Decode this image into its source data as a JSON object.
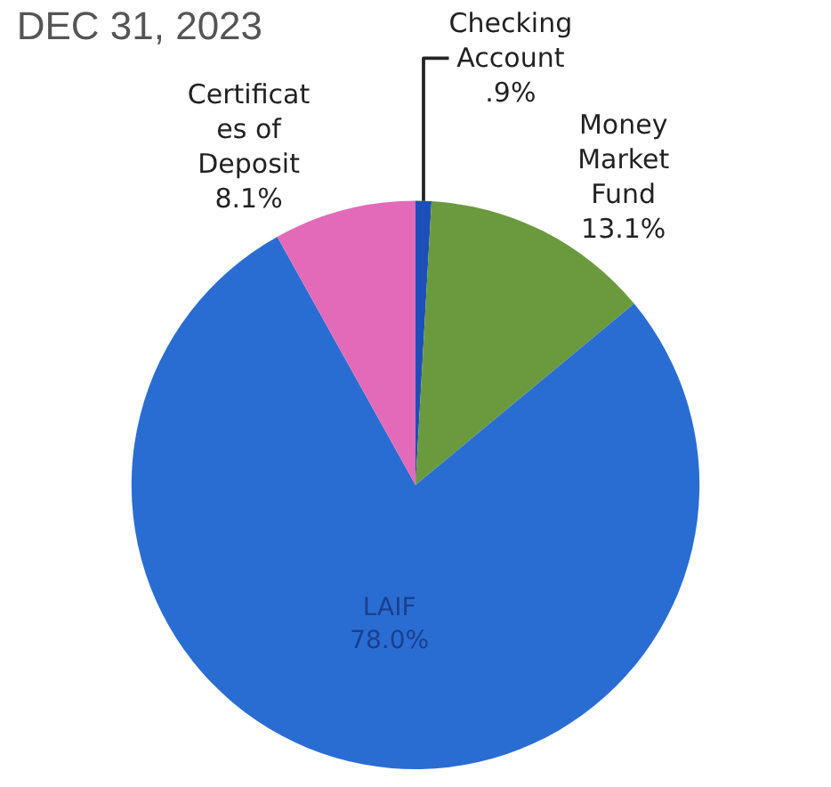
{
  "chart_data": {
    "type": "pie",
    "title": "DEC 31, 2023",
    "categories": [
      "Checking\nAccount",
      "Money\nMarket\nFund",
      "LAIF",
      "Certificat\nes of\nDeposit"
    ],
    "values": [
      0.9,
      13.1,
      78.0,
      8.1
    ],
    "value_labels": [
      ".9%",
      "13.1%",
      "78.0%",
      "8.1%"
    ],
    "colors": [
      "#1d4fb8",
      "#6b9a3e",
      "#2a6dd2",
      "#e36ab8"
    ]
  }
}
